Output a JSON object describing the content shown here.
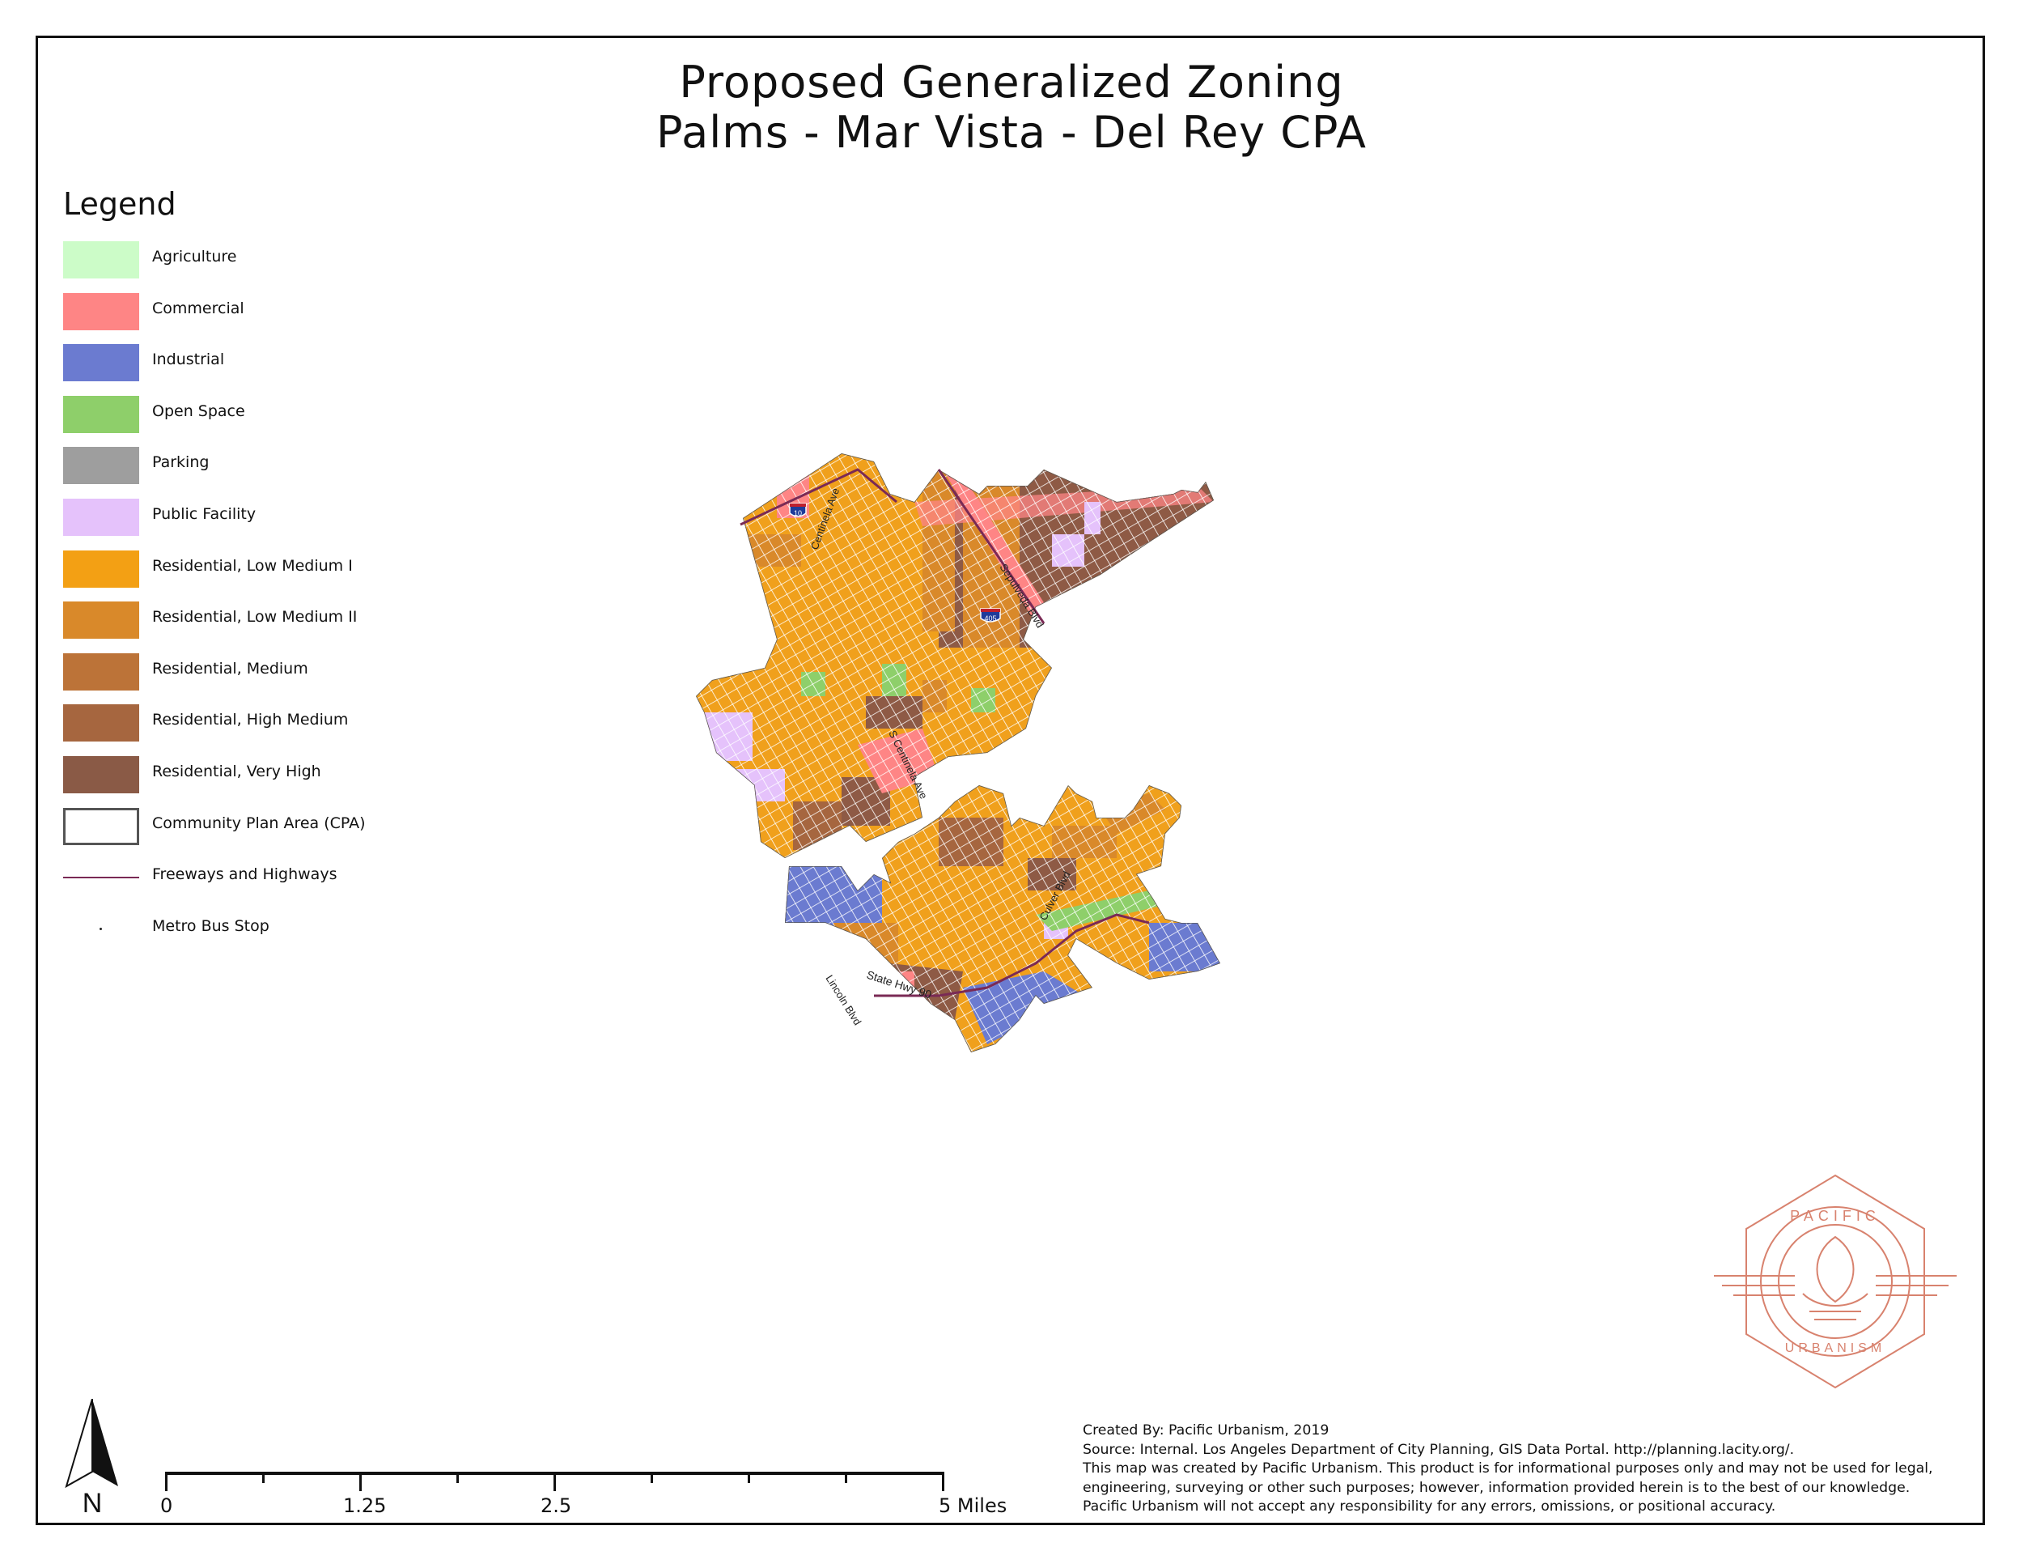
{
  "title": {
    "line1": "Proposed Generalized Zoning",
    "line2": "Palms - Mar Vista - Del Rey CPA"
  },
  "legend": {
    "title": "Legend",
    "items": [
      {
        "label": "Agriculture",
        "color": "#ccfcc8",
        "kind": "fill"
      },
      {
        "label": "Commercial",
        "color": "#fe8585",
        "kind": "fill"
      },
      {
        "label": "Industrial",
        "color": "#6b7bd0",
        "kind": "fill"
      },
      {
        "label": "Open Space",
        "color": "#8ecf6a",
        "kind": "fill"
      },
      {
        "label": "Parking",
        "color": "#9e9e9e",
        "kind": "fill"
      },
      {
        "label": "Public Facility",
        "color": "#e5c2fb",
        "kind": "fill"
      },
      {
        "label": "Residential, Low Medium I",
        "color": "#f3a014",
        "kind": "fill"
      },
      {
        "label": "Residential, Low Medium II",
        "color": "#d9892a",
        "kind": "fill"
      },
      {
        "label": "Residential, Medium",
        "color": "#bc7338",
        "kind": "fill"
      },
      {
        "label": "Residential, High Medium",
        "color": "#a6663f",
        "kind": "fill"
      },
      {
        "label": "Residential, Very High",
        "color": "#8a5a46",
        "kind": "fill"
      },
      {
        "label": "Community Plan Area (CPA)",
        "color": "#ffffff",
        "kind": "outline"
      },
      {
        "label": "Freeways and Highways",
        "color": "#7a2a55",
        "kind": "line"
      },
      {
        "label": "Metro Bus Stop",
        "color": "#222222",
        "kind": "dot"
      }
    ]
  },
  "map": {
    "street_labels": [
      "Centinela Ave",
      "Sepulveda Blvd",
      "S Centinela Ave",
      "Culver Blvd",
      "State Hwy 90",
      "Lincoln Blvd"
    ],
    "shields": [
      "10",
      "405"
    ]
  },
  "scale_bar": {
    "labels": [
      "0",
      "1.25",
      "2.5",
      "5 Miles"
    ]
  },
  "north_arrow": {
    "label": "N"
  },
  "credits": {
    "lines": [
      "Created By: Pacific Urbanism, 2019",
      "Source: Internal. Los Angeles Department of City Planning, GIS Data Portal. http://planning.lacity.org/.",
      "This map was created by Pacific Urbanism. This product is for informational purposes only and may not be used for legal,",
      "engineering, surveying or other such purposes; however, information provided herein is to the best of our knowledge.",
      "Pacific Urbanism will not accept any responsibility for any errors, omissions, or positional accuracy."
    ]
  },
  "logo": {
    "text_top": "PACIFIC",
    "text_bottom": "URBANISM",
    "color": "#d8826e"
  }
}
